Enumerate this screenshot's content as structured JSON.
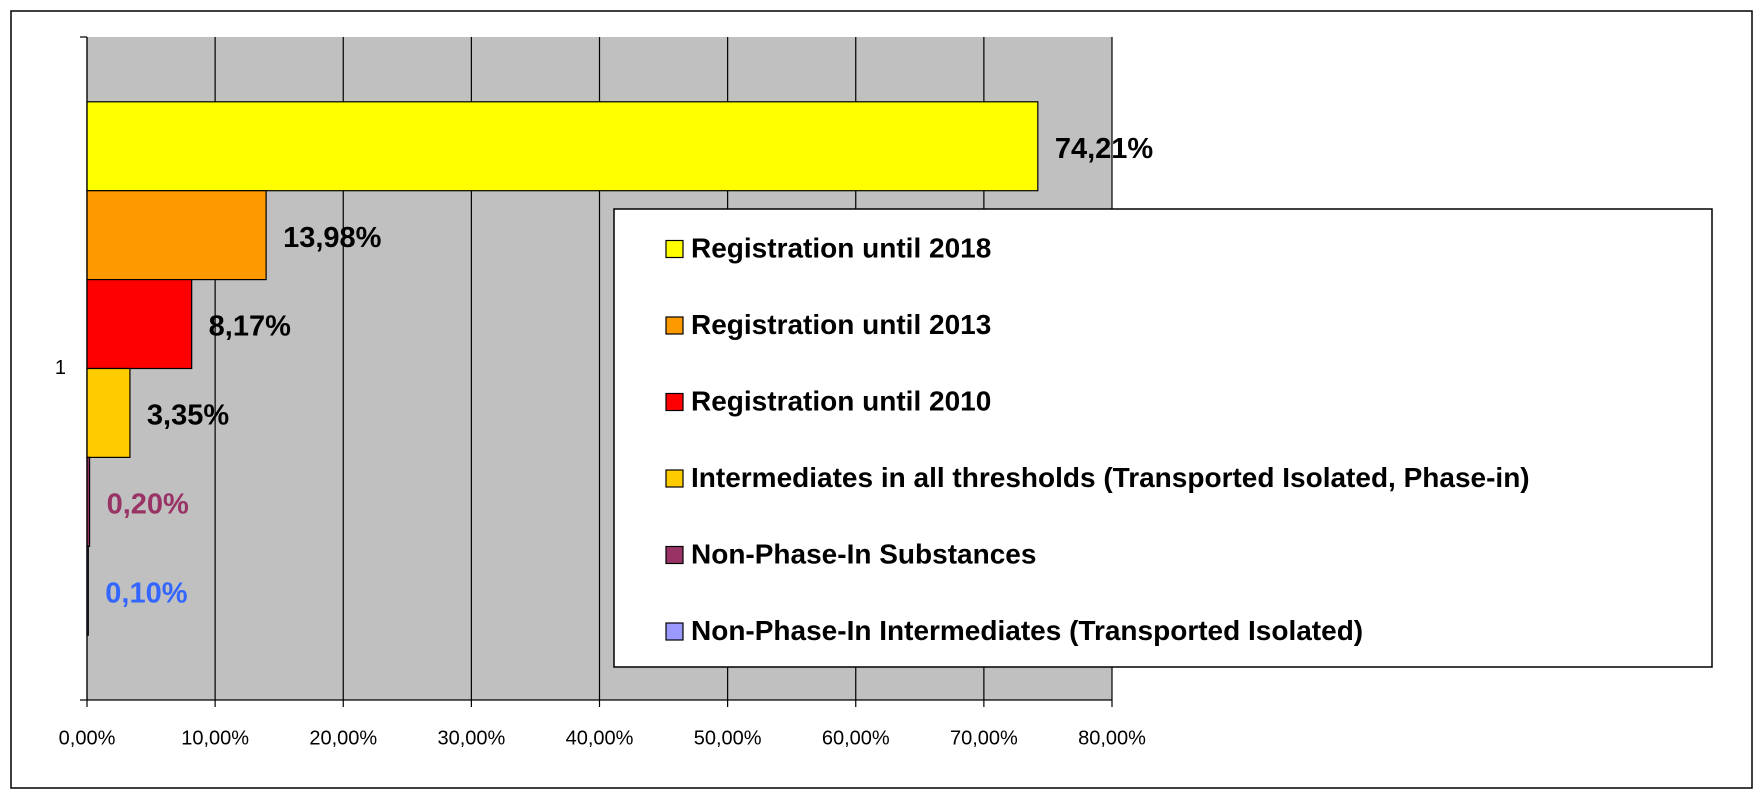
{
  "chart_data": {
    "type": "hbar",
    "categories": [
      "1"
    ],
    "series": [
      {
        "name": "Registration until 2018",
        "color": "#ffff00",
        "label_color": "#000000",
        "values": [
          74.21
        ],
        "value_labels": [
          "74,21%"
        ]
      },
      {
        "name": "Registration until 2013",
        "color": "#ff9900",
        "label_color": "#000000",
        "values": [
          13.98
        ],
        "value_labels": [
          "13,98%"
        ]
      },
      {
        "name": "Registration until 2010",
        "color": "#ff0000",
        "label_color": "#000000",
        "values": [
          8.17
        ],
        "value_labels": [
          "8,17%"
        ]
      },
      {
        "name": "Intermediates in all thresholds (Transported Isolated, Phase-in)",
        "color": "#ffcc00",
        "label_color": "#000000",
        "values": [
          3.35
        ],
        "value_labels": [
          "3,35%"
        ]
      },
      {
        "name": "Non-Phase-In Substances",
        "color": "#993366",
        "label_color": "#993366",
        "values": [
          0.2
        ],
        "value_labels": [
          "0,20%"
        ]
      },
      {
        "name": "Non-Phase-In Intermediates (Transported Isolated)",
        "color": "#9999ff",
        "label_color": "#3366ff",
        "values": [
          0.1
        ],
        "value_labels": [
          "0,10%"
        ]
      }
    ],
    "xlim": [
      0,
      80
    ],
    "xticks": [
      {
        "value": 0,
        "label": "0,00%"
      },
      {
        "value": 10,
        "label": "10,00%"
      },
      {
        "value": 20,
        "label": "20,00%"
      },
      {
        "value": 30,
        "label": "30,00%"
      },
      {
        "value": 40,
        "label": "40,00%"
      },
      {
        "value": 50,
        "label": "50,00%"
      },
      {
        "value": 60,
        "label": "60,00%"
      },
      {
        "value": 70,
        "label": "70,00%"
      },
      {
        "value": 80,
        "label": "80,00%"
      }
    ],
    "grid": true,
    "legend": "right"
  }
}
